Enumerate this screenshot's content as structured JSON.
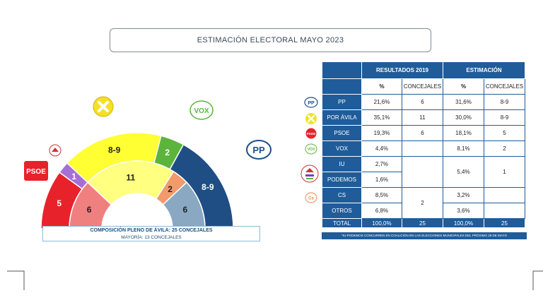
{
  "header": {
    "title": "ESTIMACIÓN ELECTORAL MAYO 2023"
  },
  "colors": {
    "pp": "#1f4e85",
    "por_avila": "#ffff33",
    "psoe": "#e8222a",
    "vox": "#5cb43c",
    "iu_podemos": "#a66fd6",
    "cs": "#f29a6b",
    "otros": "#8aa8c2",
    "inner_psoe": "#f08080",
    "inner_por_avila": "#ffff80",
    "header_blue": "#1f5c99"
  },
  "chart_data": {
    "type": "hemicycle",
    "title": "COMPOSICIÓN PLENO DE ÁVILA: 25 CONCEJALES",
    "subtitle": "MAYORÍA: 13 CONCEJALES",
    "total_seats": 25,
    "majority": 13,
    "outer_ring": {
      "name": "ESTIMACIÓN",
      "segments": [
        {
          "party": "PSOE",
          "label": "5",
          "seats": 5,
          "color": "#e8222a"
        },
        {
          "party": "IU-PODEMOS",
          "label": "1",
          "seats": 1,
          "color": "#a66fd6"
        },
        {
          "party": "POR ÁVILA",
          "label": "8-9",
          "seats": 8.5,
          "color": "#ffff33"
        },
        {
          "party": "VOX",
          "label": "2",
          "seats": 2,
          "color": "#5cb43c"
        },
        {
          "party": "PP",
          "label": "8-9",
          "seats": 8.5,
          "color": "#1f4e85"
        }
      ]
    },
    "inner_ring": {
      "name": "RESULTADOS 2019",
      "segments": [
        {
          "party": "PSOE",
          "label": "6",
          "seats": 6,
          "color": "#f08080"
        },
        {
          "party": "POR ÁVILA",
          "label": "11",
          "seats": 11,
          "color": "#ffff80"
        },
        {
          "party": "CS",
          "label": "2",
          "seats": 2,
          "color": "#f29a6b"
        },
        {
          "party": "PP",
          "label": "6",
          "seats": 6,
          "color": "#8aa8c2"
        }
      ]
    }
  },
  "table": {
    "group_headers": [
      "RESULTADOS 2019",
      "ESTIMACIÓN"
    ],
    "sub_headers": [
      "%",
      "CONCEJALES",
      "%",
      "CONCEJALES"
    ],
    "rows": [
      {
        "party": "PP",
        "pct2019": "21,6%",
        "conc2019": "6",
        "pctEst": "31,6%",
        "concEst": "8-9"
      },
      {
        "party": "POR ÁVILA",
        "pct2019": "35,1%",
        "conc2019": "11",
        "pctEst": "30,0%",
        "concEst": "8-9"
      },
      {
        "party": "PSOE",
        "pct2019": "19,3%",
        "conc2019": "6",
        "pctEst": "18,1%",
        "concEst": "5"
      },
      {
        "party": "VOX",
        "pct2019": "4,4%",
        "conc2019": "",
        "pctEst": "8,1%",
        "concEst": "2"
      },
      {
        "party": "IU",
        "pct2019": "2,7%"
      },
      {
        "party": "PODEMOS",
        "pct2019": "1,6%"
      },
      {
        "party": "CS",
        "pct2019": "8,5%",
        "conc2019": "2",
        "pctEst": "3,2%",
        "concEst": ""
      },
      {
        "party": "OTROS",
        "pct2019": "6,8%",
        "pctEst": "3,6%",
        "concEst": ""
      }
    ],
    "iu_podemos_est": {
      "pct": "5,4%",
      "conc": "1"
    },
    "total": {
      "label": "TOTAL",
      "pct2019": "100,0%",
      "conc2019": "25",
      "pctEst": "100,0%",
      "concEst": "25"
    },
    "footnote": "*IU-PODEMOS CONCURREN EN COALICIÓN EN LAS ELECCIONES MUNICIPALES DEL PRÓXIMO 28 DE MAYO"
  },
  "logos": {
    "psoe": "PSOE",
    "vox": "VOX",
    "pp": "PP",
    "cs": "Cs"
  }
}
